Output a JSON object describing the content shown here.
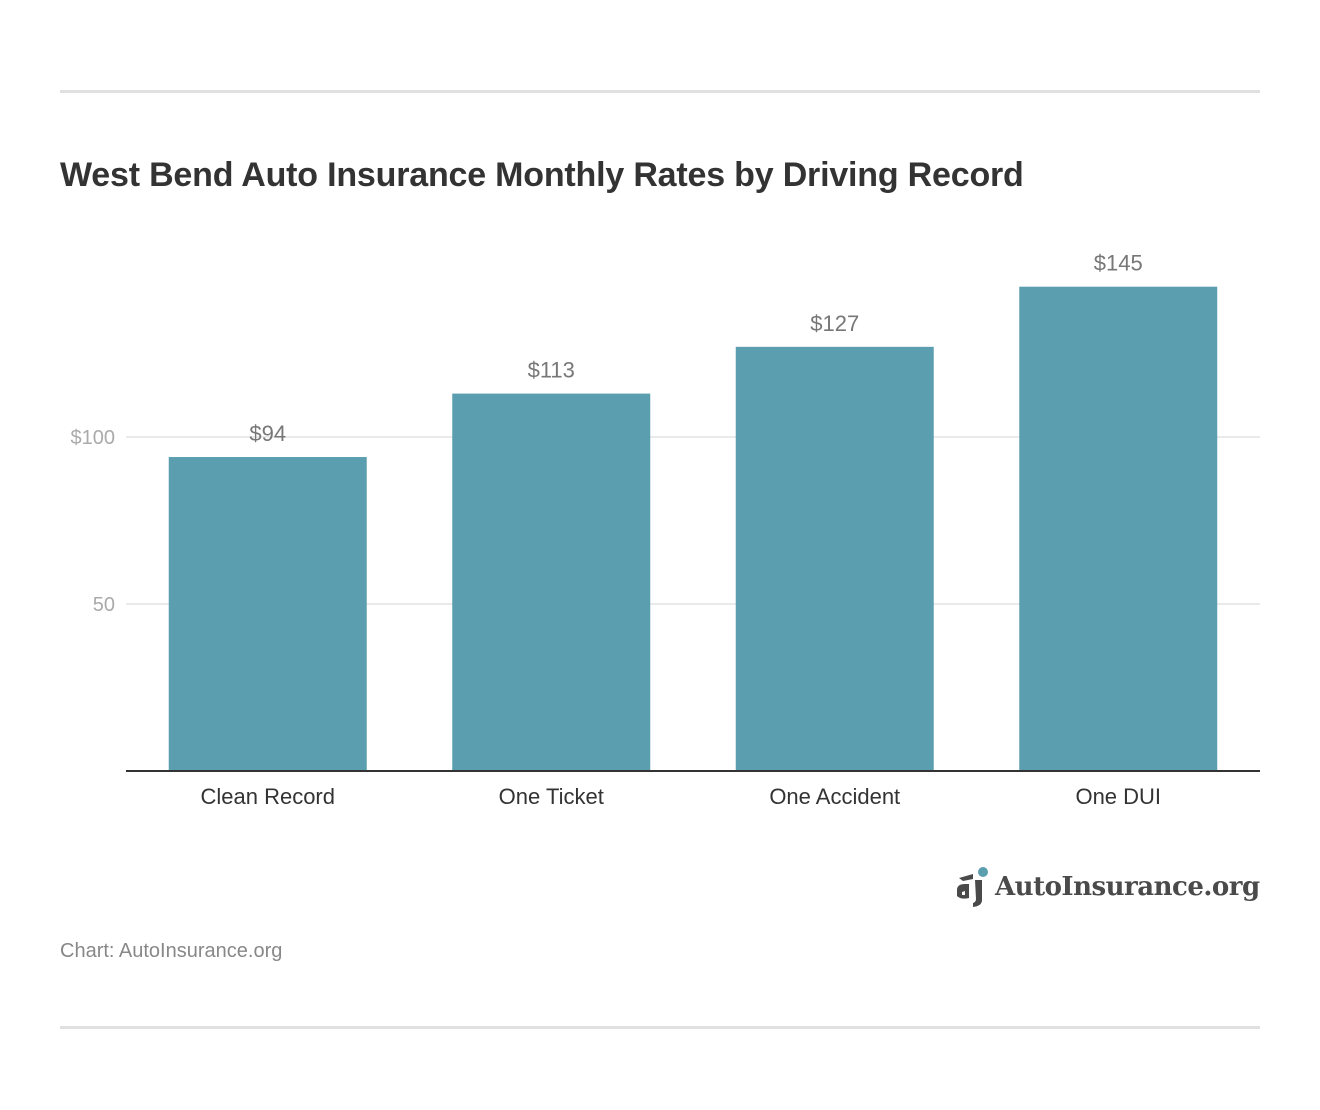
{
  "chart_data": {
    "type": "bar",
    "title": "West Bend Auto Insurance Monthly Rates by Driving Record",
    "categories": [
      "Clean Record",
      "One Ticket",
      "One Accident",
      "One DUI"
    ],
    "values": [
      94,
      113,
      127,
      145
    ],
    "data_labels": [
      "$94",
      "$113",
      "$127",
      "$145"
    ],
    "yticks": [
      {
        "value": 50,
        "label": "50"
      },
      {
        "value": 100,
        "label": "$100"
      }
    ],
    "ylim": [
      0,
      160
    ],
    "xlabel": "",
    "ylabel": "",
    "grid": true,
    "bar_color": "#5b9eb0"
  },
  "source": "Chart: AutoInsurance.org",
  "logo": {
    "text": "AutoInsurance.org",
    "accent": "#5b9eb0"
  }
}
